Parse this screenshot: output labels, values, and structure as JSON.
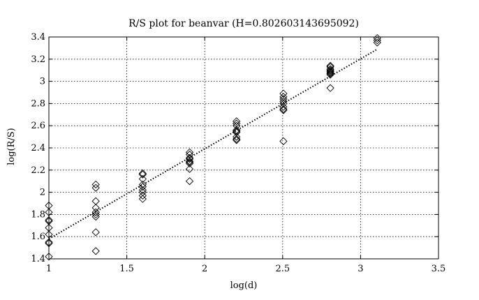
{
  "chart_data": {
    "type": "scatter",
    "title": "R/S plot for beanvar (H=0.802603143695092)",
    "xlabel": "log(d)",
    "ylabel": "log(R/S)",
    "xlim": [
      1,
      3.5
    ],
    "ylim": [
      1.4,
      3.4
    ],
    "xticks": [
      1,
      1.5,
      2,
      2.5,
      3,
      3.5
    ],
    "yticks": [
      1.4,
      1.6,
      1.8,
      2,
      2.2,
      2.4,
      2.6,
      2.8,
      3,
      3.2,
      3.4
    ],
    "xtick_labels": [
      "1",
      "1.5",
      "2",
      "2.5",
      "3",
      "3.5"
    ],
    "ytick_labels": [
      "1.4",
      "1.6",
      "1.8",
      "2",
      "2.2",
      "2.4",
      "2.6",
      "2.8",
      "3",
      "3.2",
      "3.4"
    ],
    "grid": true,
    "series": [
      {
        "marker": "diamond",
        "color": "#000000",
        "points": [
          [
            1.0,
            1.42
          ],
          [
            1.0,
            1.54
          ],
          [
            1.0,
            1.55
          ],
          [
            1.0,
            1.62
          ],
          [
            1.0,
            1.68
          ],
          [
            1.0,
            1.74
          ],
          [
            1.0,
            1.75
          ],
          [
            1.0,
            1.82
          ],
          [
            1.0,
            1.88
          ],
          [
            1.301,
            1.47
          ],
          [
            1.301,
            1.64
          ],
          [
            1.301,
            1.78
          ],
          [
            1.301,
            1.8
          ],
          [
            1.301,
            1.82
          ],
          [
            1.301,
            1.86
          ],
          [
            1.301,
            1.92
          ],
          [
            1.301,
            2.04
          ],
          [
            1.301,
            2.07
          ],
          [
            1.602,
            1.94
          ],
          [
            1.602,
            1.97
          ],
          [
            1.602,
            2.0
          ],
          [
            1.602,
            2.02
          ],
          [
            1.602,
            2.05
          ],
          [
            1.602,
            2.07
          ],
          [
            1.602,
            2.12
          ],
          [
            1.602,
            2.16
          ],
          [
            1.602,
            2.17
          ],
          [
            1.903,
            2.1
          ],
          [
            1.903,
            2.21
          ],
          [
            1.903,
            2.26
          ],
          [
            1.903,
            2.27
          ],
          [
            1.903,
            2.28
          ],
          [
            1.903,
            2.3
          ],
          [
            1.903,
            2.31
          ],
          [
            1.903,
            2.34
          ],
          [
            1.903,
            2.36
          ],
          [
            2.204,
            2.47
          ],
          [
            2.204,
            2.48
          ],
          [
            2.204,
            2.5
          ],
          [
            2.204,
            2.54
          ],
          [
            2.204,
            2.55
          ],
          [
            2.204,
            2.56
          ],
          [
            2.204,
            2.6
          ],
          [
            2.204,
            2.62
          ],
          [
            2.204,
            2.64
          ],
          [
            2.505,
            2.46
          ],
          [
            2.505,
            2.74
          ],
          [
            2.505,
            2.75
          ],
          [
            2.505,
            2.77
          ],
          [
            2.505,
            2.8
          ],
          [
            2.505,
            2.82
          ],
          [
            2.505,
            2.84
          ],
          [
            2.505,
            2.86
          ],
          [
            2.505,
            2.89
          ],
          [
            2.806,
            2.94
          ],
          [
            2.806,
            3.06
          ],
          [
            2.806,
            3.07
          ],
          [
            2.806,
            3.08
          ],
          [
            2.806,
            3.09
          ],
          [
            2.806,
            3.1
          ],
          [
            2.806,
            3.11
          ],
          [
            2.806,
            3.13
          ],
          [
            2.806,
            3.14
          ],
          [
            3.107,
            3.35
          ],
          [
            3.107,
            3.37
          ],
          [
            3.107,
            3.39
          ]
        ]
      },
      {
        "type": "line",
        "style": "dotted",
        "color": "#000000",
        "points": [
          [
            1.0,
            1.58
          ],
          [
            3.107,
            3.29
          ]
        ]
      }
    ]
  }
}
